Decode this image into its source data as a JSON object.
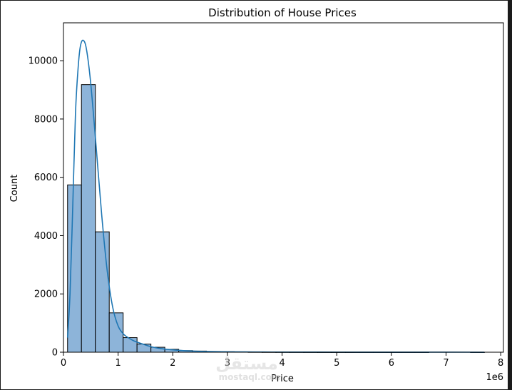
{
  "chart_data": {
    "type": "bar",
    "title": "Distribution of House Prices",
    "xlabel": "Price",
    "ylabel": "Count",
    "x_offset_label": "1e6",
    "xlim": [
      -0.0,
      8.05
    ],
    "ylim": [
      0,
      11300
    ],
    "x_ticks": [
      0,
      1,
      2,
      3,
      4,
      5,
      6,
      7,
      8
    ],
    "y_ticks": [
      0,
      2000,
      4000,
      6000,
      8000,
      10000
    ],
    "grid": false,
    "legend": "none",
    "bin_start": 0.075,
    "bin_width": 0.2542,
    "counts": [
      5740,
      9180,
      4130,
      1350,
      500,
      280,
      170,
      100,
      55,
      40,
      25,
      18,
      12,
      8,
      6,
      5,
      4,
      3,
      2,
      2,
      1,
      1,
      1,
      1,
      1,
      1,
      0,
      0,
      0,
      1
    ],
    "kde": {
      "x": [
        0.075,
        0.12,
        0.17,
        0.22,
        0.27,
        0.31,
        0.36,
        0.42,
        0.5,
        0.6,
        0.7,
        0.8,
        0.9,
        1.0,
        1.1,
        1.2,
        1.3,
        1.45,
        1.6,
        1.8,
        2.0,
        2.3,
        2.6,
        3.0,
        3.5,
        4.0,
        5.0,
        6.0,
        7.0,
        7.7
      ],
      "y": [
        500,
        2000,
        5000,
        8200,
        9800,
        10500,
        10700,
        10400,
        9200,
        7000,
        4700,
        2800,
        1550,
        900,
        620,
        480,
        380,
        280,
        190,
        120,
        80,
        45,
        25,
        15,
        8,
        5,
        3,
        2,
        1,
        0
      ]
    },
    "bar_color": "#8db4d9",
    "line_color": "#1f77b4"
  },
  "watermark": {
    "arabic": "مستقل",
    "latin": "mostaql.com"
  }
}
